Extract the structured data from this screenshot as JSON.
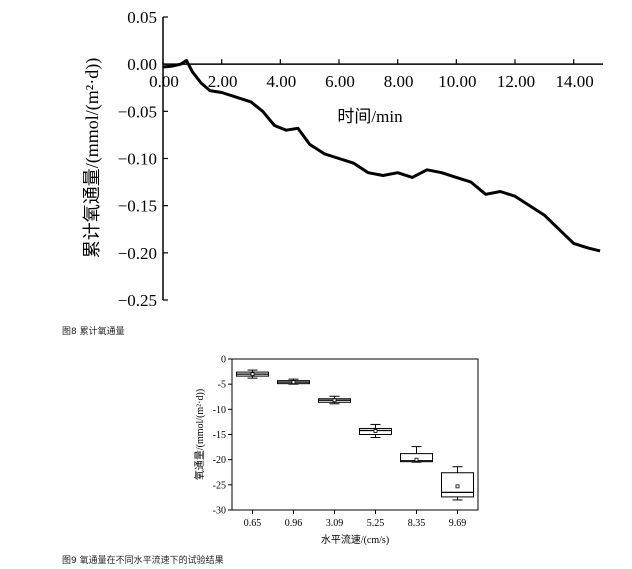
{
  "figure1": {
    "caption": "图8 累计氧通量",
    "chart_data": {
      "type": "line",
      "xlabel": "时间/min",
      "ylabel": "累计氧通量/(mmol/(m²·d))",
      "xlim": [
        0,
        15
      ],
      "ylim": [
        -0.25,
        0.05
      ],
      "x_ticks": [
        0,
        2,
        4,
        6,
        8,
        10,
        12,
        14
      ],
      "x_tick_labels": [
        "0.00",
        "2.00",
        "4.00",
        "6.00",
        "8.00",
        "10.00",
        "12.00",
        "14.00"
      ],
      "y_ticks": [
        0.05,
        0,
        -0.05,
        -0.1,
        -0.15,
        -0.2,
        -0.25
      ],
      "y_tick_labels": [
        "0.05",
        "0.00",
        "−0.05",
        "−0.10",
        "−0.15",
        "−0.20",
        "−0.25"
      ],
      "series": [
        {
          "x": [
            0,
            0.3,
            0.6,
            0.8,
            1.0,
            1.3,
            1.6,
            2.0,
            2.5,
            3.0,
            3.4,
            3.8,
            4.2,
            4.6,
            5.0,
            5.5,
            6.0,
            6.5,
            7.0,
            7.5,
            8.0,
            8.5,
            9.0,
            9.5,
            10.0,
            10.5,
            11.0,
            11.5,
            12.0,
            12.5,
            13.0,
            13.5,
            14.0,
            14.5,
            14.9
          ],
          "y": [
            -0.003,
            -0.002,
            0.0,
            0.004,
            -0.008,
            -0.02,
            -0.028,
            -0.03,
            -0.035,
            -0.04,
            -0.05,
            -0.065,
            -0.07,
            -0.068,
            -0.085,
            -0.095,
            -0.1,
            -0.105,
            -0.115,
            -0.118,
            -0.115,
            -0.12,
            -0.112,
            -0.115,
            -0.12,
            -0.125,
            -0.138,
            -0.135,
            -0.14,
            -0.15,
            -0.16,
            -0.175,
            -0.19,
            -0.195,
            -0.198
          ]
        }
      ]
    }
  },
  "figure2": {
    "caption": "图9 氧通量在不同水平流速下的试验结果",
    "chart_data": {
      "type": "box",
      "xlabel": "水平流速/(cm/s)",
      "ylabel": "氧通量/(mmol/(m²·d))",
      "categories": [
        "0.65",
        "0.96",
        "3.09",
        "5.25",
        "8.35",
        "9.69"
      ],
      "ylim": [
        -30,
        0
      ],
      "y_ticks": [
        0,
        -5,
        -10,
        -15,
        -20,
        -25,
        -30
      ],
      "y_tick_labels": [
        "0",
        "-5",
        "-10",
        "-15",
        "-20",
        "-25",
        "-30"
      ],
      "boxes": [
        {
          "min": -3.8,
          "q1": -3.4,
          "median": -3.0,
          "q3": -2.6,
          "max": -2.2,
          "mean": -3.0
        },
        {
          "min": -5.0,
          "q1": -4.9,
          "median": -4.6,
          "q3": -4.3,
          "max": -4.0,
          "mean": -4.6
        },
        {
          "min": -8.9,
          "q1": -8.6,
          "median": -8.2,
          "q3": -7.9,
          "max": -7.4,
          "mean": -8.2
        },
        {
          "min": -15.6,
          "q1": -15.0,
          "median": -14.2,
          "q3": -13.8,
          "max": -13.0,
          "mean": -14.3
        },
        {
          "min": -20.5,
          "q1": -20.4,
          "median": -20.2,
          "q3": -18.8,
          "max": -17.4,
          "mean": -20.0
        },
        {
          "min": -28.0,
          "q1": -27.4,
          "median": -26.5,
          "q3": -22.6,
          "max": -21.4,
          "mean": -25.3
        }
      ]
    }
  }
}
